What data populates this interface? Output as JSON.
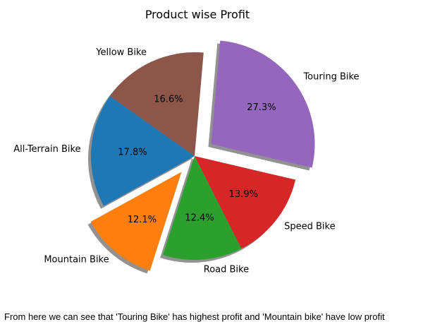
{
  "chart_data": {
    "type": "pie",
    "title": "Product wise Profit",
    "categories": [
      "Touring Bike",
      "Speed Bike",
      "Road Bike",
      "Mountain Bike",
      "All-Terrain Bike",
      "Yellow Bike"
    ],
    "values": [
      27.3,
      13.9,
      12.4,
      12.1,
      17.8,
      16.6
    ],
    "value_labels": [
      "27.3%",
      "13.9%",
      "12.4%",
      "12.1%",
      "17.8%",
      "16.6%"
    ],
    "colors": [
      "#9467bd",
      "#d62728",
      "#2ca02c",
      "#ff7f0e",
      "#1f77b4",
      "#8c564b"
    ],
    "exploded": [
      true,
      false,
      false,
      true,
      false,
      false
    ],
    "shadow": true,
    "legend": "none"
  },
  "footnote": "From here we can see that 'Touring Bike' has highest profit and 'Mountain bike' have low profit"
}
